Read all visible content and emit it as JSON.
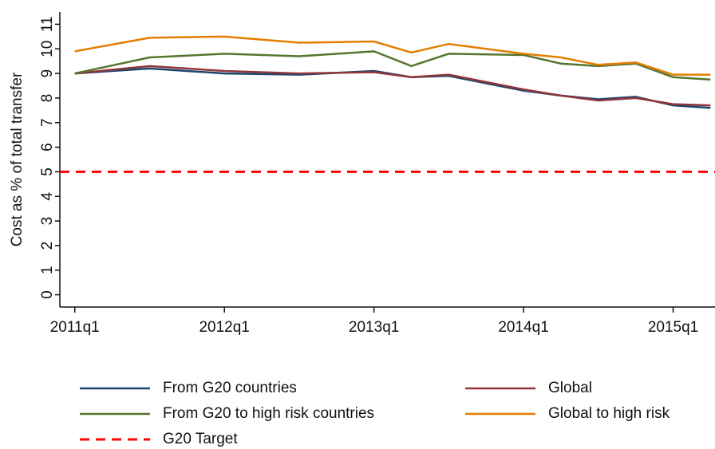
{
  "chart_data": {
    "type": "line",
    "y_label": "Cost as % of total transfer",
    "x": [
      2011,
      2011.5,
      2012,
      2012.5,
      2013,
      2013.25,
      2013.5,
      2014,
      2014.25,
      2014.5,
      2014.75,
      2015,
      2015.25
    ],
    "xlim": [
      2010.9,
      2015.28
    ],
    "xticks": [
      {
        "value": 2011,
        "label": "2011q1"
      },
      {
        "value": 2012,
        "label": "2012q1"
      },
      {
        "value": 2013,
        "label": "2013q1"
      },
      {
        "value": 2014,
        "label": "2014q1"
      },
      {
        "value": 2015,
        "label": "2015q1"
      }
    ],
    "ylim": [
      -0.5,
      11.5
    ],
    "yticks": [
      0,
      1,
      2,
      3,
      4,
      5,
      6,
      7,
      8,
      9,
      10,
      11
    ],
    "series": [
      {
        "name": "From G20 countries",
        "color": "#1a476f",
        "values": [
          9.0,
          9.2,
          9.0,
          8.95,
          9.1,
          8.85,
          8.9,
          8.3,
          8.1,
          7.95,
          8.05,
          7.7,
          7.6
        ]
      },
      {
        "name": "Global",
        "color": "#90353b",
        "values": [
          9.0,
          9.3,
          9.1,
          9.0,
          9.05,
          8.85,
          8.95,
          8.35,
          8.1,
          7.9,
          8.0,
          7.75,
          7.7
        ]
      },
      {
        "name": "From G20 to high risk countries",
        "color": "#55752f",
        "values": [
          9.0,
          9.65,
          9.8,
          9.7,
          9.9,
          9.3,
          9.8,
          9.75,
          9.4,
          9.3,
          9.4,
          8.85,
          8.75
        ]
      },
      {
        "name": "Global to high risk",
        "color": "#e37e00",
        "values": [
          9.9,
          10.45,
          10.5,
          10.25,
          10.3,
          9.85,
          10.2,
          9.8,
          9.65,
          9.35,
          9.45,
          8.95,
          8.95
        ]
      }
    ],
    "target": {
      "name": "G20 Target",
      "value": 5,
      "color": "#ff0000",
      "dashed": true
    }
  }
}
